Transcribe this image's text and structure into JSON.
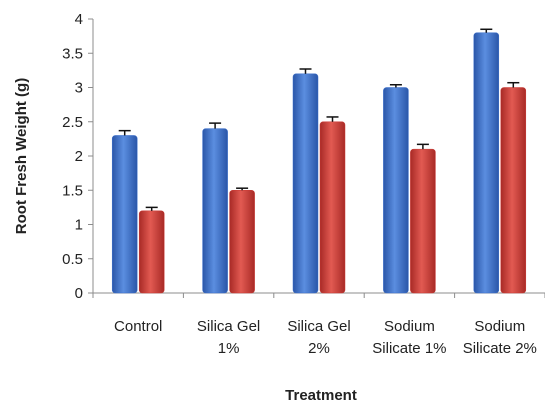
{
  "chart_data": {
    "type": "bar",
    "title": "",
    "xlabel": "Treatment",
    "ylabel": "Root Fresh Weight (g)",
    "categories": [
      [
        "Control"
      ],
      [
        "Silica Gel",
        "1%"
      ],
      [
        "Silica Gel",
        "2%"
      ],
      [
        "Sodium",
        "Silicate 1%"
      ],
      [
        "Sodium",
        "Silicate 2%"
      ]
    ],
    "series": [
      {
        "color": "#3b6fcc",
        "values": [
          2.3,
          2.4,
          3.2,
          3.0,
          3.8
        ],
        "errors": [
          0.07,
          0.08,
          0.07,
          0.04,
          0.05
        ]
      },
      {
        "color": "#cc3a35",
        "values": [
          1.2,
          1.5,
          2.5,
          2.1,
          3.0
        ],
        "errors": [
          0.05,
          0.03,
          0.07,
          0.07,
          0.07
        ]
      }
    ],
    "ylim": [
      0,
      4
    ],
    "yticks": [
      "0",
      "0.5",
      "1",
      "1.5",
      "2",
      "2.5",
      "3",
      "3.5",
      "4"
    ],
    "grid": false,
    "legend": "none"
  }
}
